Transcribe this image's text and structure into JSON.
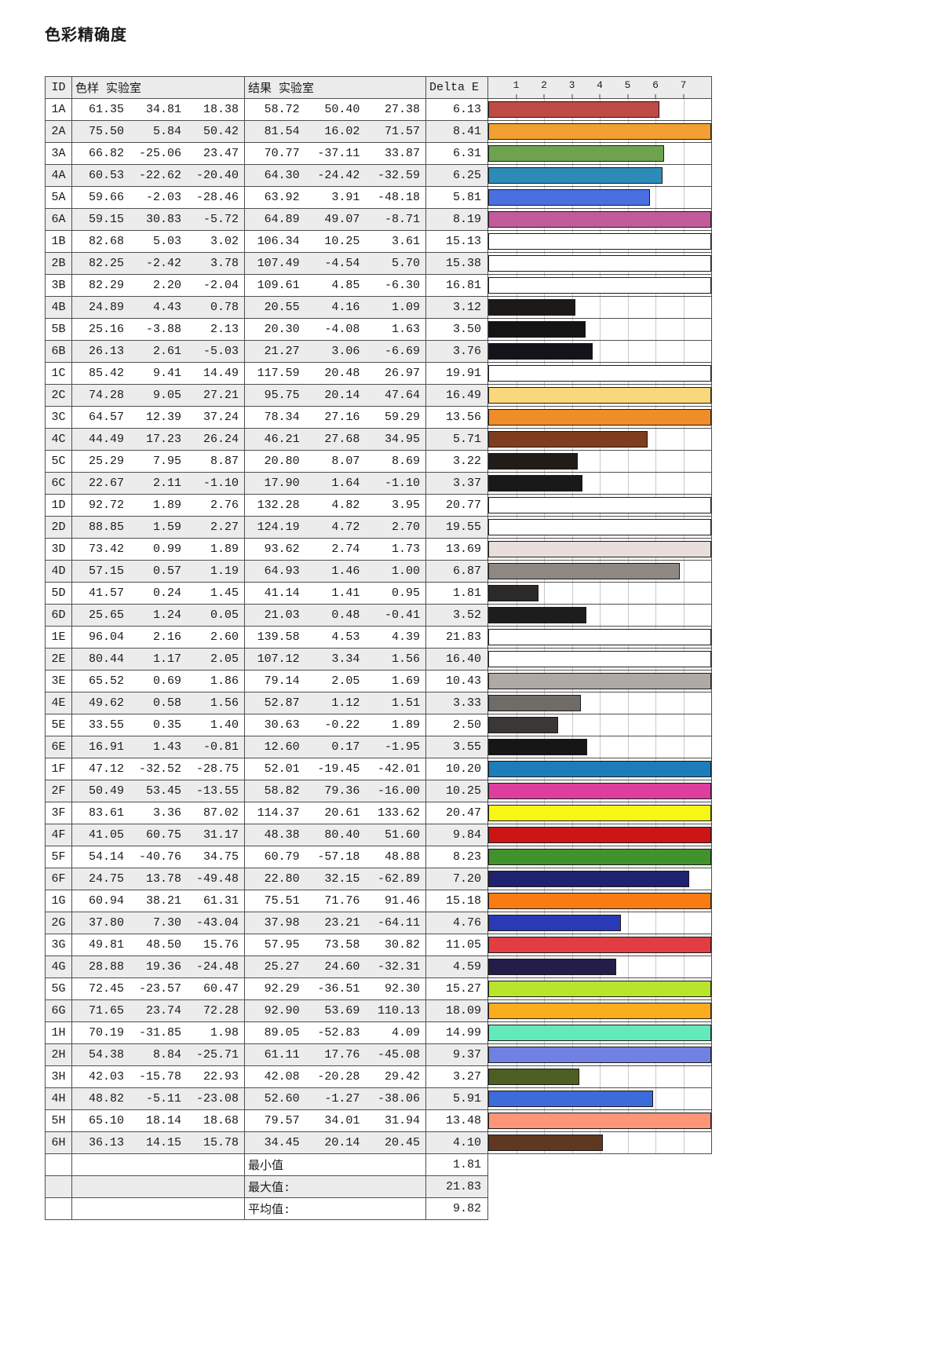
{
  "title": "色彩精确度",
  "chart_data": {
    "type": "bar",
    "title": "色彩精确度",
    "xlabel": "Delta E",
    "legend_position": "none",
    "grid": true,
    "axis": {
      "ticks": [
        "1",
        "2",
        "3",
        "4",
        "5",
        "6",
        "7"
      ],
      "max": 8
    },
    "columns": {
      "id": "ID",
      "sample": "色样 实验室",
      "result": "结果 实验室",
      "delta": "Delta E"
    },
    "categories": [
      "1A",
      "2A",
      "3A",
      "4A",
      "5A",
      "6A",
      "1B",
      "2B",
      "3B",
      "4B",
      "5B",
      "6B",
      "1C",
      "2C",
      "3C",
      "4C",
      "5C",
      "6C",
      "1D",
      "2D",
      "3D",
      "4D",
      "5D",
      "6D",
      "1E",
      "2E",
      "3E",
      "4E",
      "5E",
      "6E",
      "1F",
      "2F",
      "3F",
      "4F",
      "5F",
      "6F",
      "1G",
      "2G",
      "3G",
      "4G",
      "5G",
      "6G",
      "1H",
      "2H",
      "3H",
      "4H",
      "5H",
      "6H"
    ],
    "values": [
      6.13,
      8.41,
      6.31,
      6.25,
      5.81,
      8.19,
      15.13,
      15.38,
      16.81,
      3.12,
      3.5,
      3.76,
      19.91,
      16.49,
      13.56,
      5.71,
      3.22,
      3.37,
      20.77,
      19.55,
      13.69,
      6.87,
      1.81,
      3.52,
      21.83,
      16.4,
      10.43,
      3.33,
      2.5,
      3.55,
      10.2,
      10.25,
      20.47,
      9.84,
      8.23,
      7.2,
      15.18,
      4.76,
      11.05,
      4.59,
      15.27,
      18.09,
      14.99,
      9.37,
      3.27,
      5.91,
      13.48,
      4.1
    ],
    "rows": [
      {
        "id": "1A",
        "sample": [
          "61.35",
          "34.81",
          "18.38"
        ],
        "result": [
          "58.72",
          "50.40",
          "27.38"
        ],
        "delta": 6.13,
        "color": "#bf4b45"
      },
      {
        "id": "2A",
        "sample": [
          "75.50",
          "5.84",
          "50.42"
        ],
        "result": [
          "81.54",
          "16.02",
          "71.57"
        ],
        "delta": 8.41,
        "color": "#f2a033"
      },
      {
        "id": "3A",
        "sample": [
          "66.82",
          "-25.06",
          "23.47"
        ],
        "result": [
          "70.77",
          "-37.11",
          "33.87"
        ],
        "delta": 6.31,
        "color": "#6fa24e"
      },
      {
        "id": "4A",
        "sample": [
          "60.53",
          "-22.62",
          "-20.40"
        ],
        "result": [
          "64.30",
          "-24.42",
          "-32.59"
        ],
        "delta": 6.25,
        "color": "#2e8bb8"
      },
      {
        "id": "5A",
        "sample": [
          "59.66",
          "-2.03",
          "-28.46"
        ],
        "result": [
          "63.92",
          "3.91",
          "-48.18"
        ],
        "delta": 5.81,
        "color": "#4a6fe0"
      },
      {
        "id": "6A",
        "sample": [
          "59.15",
          "30.83",
          "-5.72"
        ],
        "result": [
          "64.89",
          "49.07",
          "-8.71"
        ],
        "delta": 8.19,
        "color": "#c25b99"
      },
      {
        "id": "1B",
        "sample": [
          "82.68",
          "5.03",
          "3.02"
        ],
        "result": [
          "106.34",
          "10.25",
          "3.61"
        ],
        "delta": 15.13,
        "color": "#ffffff"
      },
      {
        "id": "2B",
        "sample": [
          "82.25",
          "-2.42",
          "3.78"
        ],
        "result": [
          "107.49",
          "-4.54",
          "5.70"
        ],
        "delta": 15.38,
        "color": "#ffffff"
      },
      {
        "id": "3B",
        "sample": [
          "82.29",
          "2.20",
          "-2.04"
        ],
        "result": [
          "109.61",
          "4.85",
          "-6.30"
        ],
        "delta": 16.81,
        "color": "#ffffff"
      },
      {
        "id": "4B",
        "sample": [
          "24.89",
          "4.43",
          "0.78"
        ],
        "result": [
          "20.55",
          "4.16",
          "1.09"
        ],
        "delta": 3.12,
        "color": "#1c1916"
      },
      {
        "id": "5B",
        "sample": [
          "25.16",
          "-3.88",
          "2.13"
        ],
        "result": [
          "20.30",
          "-4.08",
          "1.63"
        ],
        "delta": 3.5,
        "color": "#141414"
      },
      {
        "id": "6B",
        "sample": [
          "26.13",
          "2.61",
          "-5.03"
        ],
        "result": [
          "21.27",
          "3.06",
          "-6.69"
        ],
        "delta": 3.76,
        "color": "#13131c"
      },
      {
        "id": "1C",
        "sample": [
          "85.42",
          "9.41",
          "14.49"
        ],
        "result": [
          "117.59",
          "20.48",
          "26.97"
        ],
        "delta": 19.91,
        "color": "#ffffff"
      },
      {
        "id": "2C",
        "sample": [
          "74.28",
          "9.05",
          "27.21"
        ],
        "result": [
          "95.75",
          "20.14",
          "47.64"
        ],
        "delta": 16.49,
        "color": "#fad879"
      },
      {
        "id": "3C",
        "sample": [
          "64.57",
          "12.39",
          "37.24"
        ],
        "result": [
          "78.34",
          "27.16",
          "59.29"
        ],
        "delta": 13.56,
        "color": "#ef8d29"
      },
      {
        "id": "4C",
        "sample": [
          "44.49",
          "17.23",
          "26.24"
        ],
        "result": [
          "46.21",
          "27.68",
          "34.95"
        ],
        "delta": 5.71,
        "color": "#7d3d1e"
      },
      {
        "id": "5C",
        "sample": [
          "25.29",
          "7.95",
          "8.87"
        ],
        "result": [
          "20.80",
          "8.07",
          "8.69"
        ],
        "delta": 3.22,
        "color": "#211c19"
      },
      {
        "id": "6C",
        "sample": [
          "22.67",
          "2.11",
          "-1.10"
        ],
        "result": [
          "17.90",
          "1.64",
          "-1.10"
        ],
        "delta": 3.37,
        "color": "#191919"
      },
      {
        "id": "1D",
        "sample": [
          "92.72",
          "1.89",
          "2.76"
        ],
        "result": [
          "132.28",
          "4.82",
          "3.95"
        ],
        "delta": 20.77,
        "color": "#ffffff"
      },
      {
        "id": "2D",
        "sample": [
          "88.85",
          "1.59",
          "2.27"
        ],
        "result": [
          "124.19",
          "4.72",
          "2.70"
        ],
        "delta": 19.55,
        "color": "#ffffff"
      },
      {
        "id": "3D",
        "sample": [
          "73.42",
          "0.99",
          "1.89"
        ],
        "result": [
          "93.62",
          "2.74",
          "1.73"
        ],
        "delta": 13.69,
        "color": "#e9dedb"
      },
      {
        "id": "4D",
        "sample": [
          "57.15",
          "0.57",
          "1.19"
        ],
        "result": [
          "64.93",
          "1.46",
          "1.00"
        ],
        "delta": 6.87,
        "color": "#8d8884"
      },
      {
        "id": "5D",
        "sample": [
          "41.57",
          "0.24",
          "1.45"
        ],
        "result": [
          "41.14",
          "1.41",
          "0.95"
        ],
        "delta": 1.81,
        "color": "#2b2a28"
      },
      {
        "id": "6D",
        "sample": [
          "25.65",
          "1.24",
          "0.05"
        ],
        "result": [
          "21.03",
          "0.48",
          "-0.41"
        ],
        "delta": 3.52,
        "color": "#1d1d1d"
      },
      {
        "id": "1E",
        "sample": [
          "96.04",
          "2.16",
          "2.60"
        ],
        "result": [
          "139.58",
          "4.53",
          "4.39"
        ],
        "delta": 21.83,
        "color": "#ffffff"
      },
      {
        "id": "2E",
        "sample": [
          "80.44",
          "1.17",
          "2.05"
        ],
        "result": [
          "107.12",
          "3.34",
          "1.56"
        ],
        "delta": 16.4,
        "color": "#ffffff"
      },
      {
        "id": "3E",
        "sample": [
          "65.52",
          "0.69",
          "1.86"
        ],
        "result": [
          "79.14",
          "2.05",
          "1.69"
        ],
        "delta": 10.43,
        "color": "#aea9a5"
      },
      {
        "id": "4E",
        "sample": [
          "49.62",
          "0.58",
          "1.56"
        ],
        "result": [
          "52.87",
          "1.12",
          "1.51"
        ],
        "delta": 3.33,
        "color": "#6f6b67"
      },
      {
        "id": "5E",
        "sample": [
          "33.55",
          "0.35",
          "1.40"
        ],
        "result": [
          "30.63",
          "-0.22",
          "1.89"
        ],
        "delta": 2.5,
        "color": "#3a3834"
      },
      {
        "id": "6E",
        "sample": [
          "16.91",
          "1.43",
          "-0.81"
        ],
        "result": [
          "12.60",
          "0.17",
          "-1.95"
        ],
        "delta": 3.55,
        "color": "#161616"
      },
      {
        "id": "1F",
        "sample": [
          "47.12",
          "-32.52",
          "-28.75"
        ],
        "result": [
          "52.01",
          "-19.45",
          "-42.01"
        ],
        "delta": 10.2,
        "color": "#1d7cba"
      },
      {
        "id": "2F",
        "sample": [
          "50.49",
          "53.45",
          "-13.55"
        ],
        "result": [
          "58.82",
          "79.36",
          "-16.00"
        ],
        "delta": 10.25,
        "color": "#de3e9e"
      },
      {
        "id": "3F",
        "sample": [
          "83.61",
          "3.36",
          "87.02"
        ],
        "result": [
          "114.37",
          "20.61",
          "133.62"
        ],
        "delta": 20.47,
        "color": "#f8f615"
      },
      {
        "id": "4F",
        "sample": [
          "41.05",
          "60.75",
          "31.17"
        ],
        "result": [
          "48.38",
          "80.40",
          "51.60"
        ],
        "delta": 9.84,
        "color": "#cb1517"
      },
      {
        "id": "5F",
        "sample": [
          "54.14",
          "-40.76",
          "34.75"
        ],
        "result": [
          "60.79",
          "-57.18",
          "48.88"
        ],
        "delta": 8.23,
        "color": "#42922c"
      },
      {
        "id": "6F",
        "sample": [
          "24.75",
          "13.78",
          "-49.48"
        ],
        "result": [
          "22.80",
          "32.15",
          "-62.89"
        ],
        "delta": 7.2,
        "color": "#20216f"
      },
      {
        "id": "1G",
        "sample": [
          "60.94",
          "38.21",
          "61.31"
        ],
        "result": [
          "75.51",
          "71.76",
          "91.46"
        ],
        "delta": 15.18,
        "color": "#fb7b13"
      },
      {
        "id": "2G",
        "sample": [
          "37.80",
          "7.30",
          "-43.04"
        ],
        "result": [
          "37.98",
          "23.21",
          "-64.11"
        ],
        "delta": 4.76,
        "color": "#2a39b5"
      },
      {
        "id": "3G",
        "sample": [
          "49.81",
          "48.50",
          "15.76"
        ],
        "result": [
          "57.95",
          "73.58",
          "30.82"
        ],
        "delta": 11.05,
        "color": "#e23d42"
      },
      {
        "id": "4G",
        "sample": [
          "28.88",
          "19.36",
          "-24.48"
        ],
        "result": [
          "25.27",
          "24.60",
          "-32.31"
        ],
        "delta": 4.59,
        "color": "#241d49"
      },
      {
        "id": "5G",
        "sample": [
          "72.45",
          "-23.57",
          "60.47"
        ],
        "result": [
          "92.29",
          "-36.51",
          "92.30"
        ],
        "delta": 15.27,
        "color": "#b7e52b"
      },
      {
        "id": "6G",
        "sample": [
          "71.65",
          "23.74",
          "72.28"
        ],
        "result": [
          "92.90",
          "53.69",
          "110.13"
        ],
        "delta": 18.09,
        "color": "#fbad1b"
      },
      {
        "id": "1H",
        "sample": [
          "70.19",
          "-31.85",
          "1.98"
        ],
        "result": [
          "89.05",
          "-52.83",
          "4.09"
        ],
        "delta": 14.99,
        "color": "#63eaba"
      },
      {
        "id": "2H",
        "sample": [
          "54.38",
          "8.84",
          "-25.71"
        ],
        "result": [
          "61.11",
          "17.76",
          "-45.08"
        ],
        "delta": 9.37,
        "color": "#7181e2"
      },
      {
        "id": "3H",
        "sample": [
          "42.03",
          "-15.78",
          "22.93"
        ],
        "result": [
          "42.08",
          "-20.28",
          "29.42"
        ],
        "delta": 3.27,
        "color": "#4e5e22"
      },
      {
        "id": "4H",
        "sample": [
          "48.82",
          "-5.11",
          "-23.08"
        ],
        "result": [
          "52.60",
          "-1.27",
          "-38.06"
        ],
        "delta": 5.91,
        "color": "#3b6cda"
      },
      {
        "id": "5H",
        "sample": [
          "65.10",
          "18.14",
          "18.68"
        ],
        "result": [
          "79.57",
          "34.01",
          "31.94"
        ],
        "delta": 13.48,
        "color": "#fc9678"
      },
      {
        "id": "6H",
        "sample": [
          "36.13",
          "14.15",
          "15.78"
        ],
        "result": [
          "34.45",
          "20.14",
          "20.45"
        ],
        "delta": 4.1,
        "color": "#60381f"
      }
    ],
    "summary": [
      {
        "label": "最小值",
        "value": "1.81"
      },
      {
        "label": "最大值:",
        "value": "21.83"
      },
      {
        "label": "平均值:",
        "value": "9.82"
      }
    ]
  }
}
